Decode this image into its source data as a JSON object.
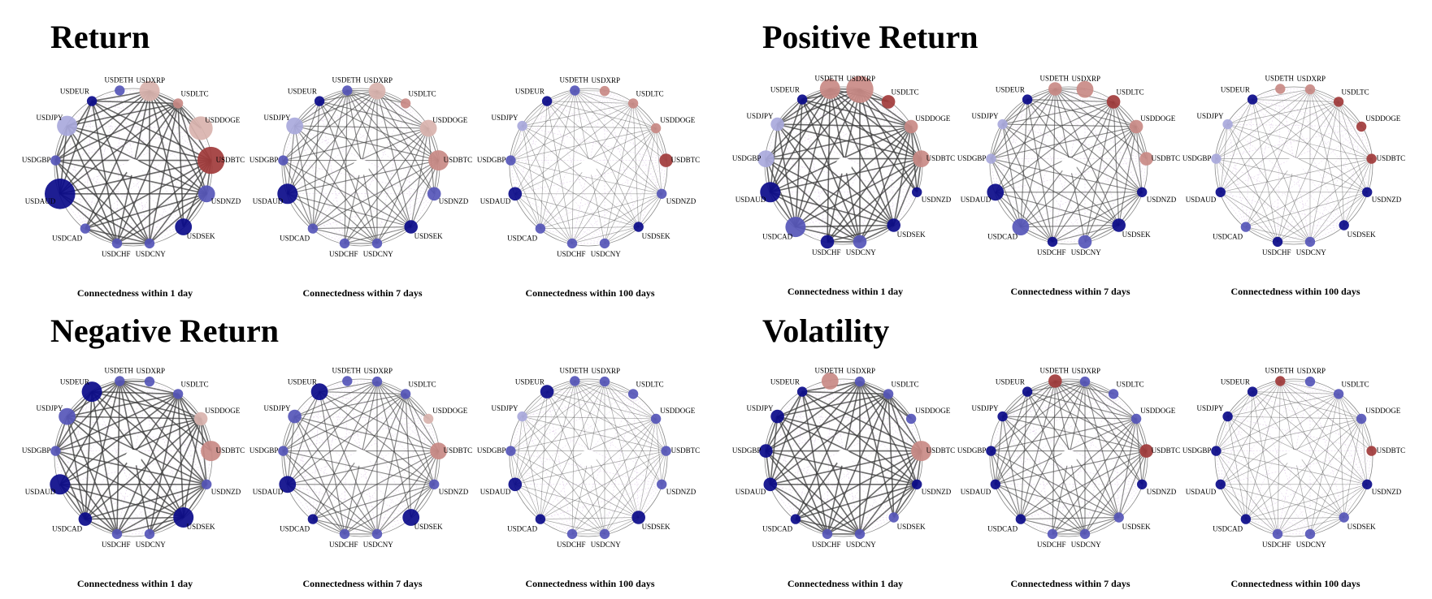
{
  "nodes": [
    "USDETH",
    "USDXRP",
    "USDLTC",
    "USDDOGE",
    "USDBTC",
    "USDNZD",
    "USDSEK",
    "USDCNY",
    "USDCHF",
    "USDCAD",
    "USDAUD",
    "USDGBP",
    "USDJPY",
    "USDEUR"
  ],
  "colors": {
    "crypto_strong": "#a13b3b",
    "crypto_mid": "#c98a86",
    "crypto_light": "#d9b3ae",
    "fx_strong": "#0b0b8a",
    "fx_mid": "#5656b8",
    "fx_light": "#a9a9dc",
    "edge_dark": "#3a3a3a",
    "edge_light": "#c9a7d8"
  },
  "sections": [
    {
      "title": "Return",
      "panels": [
        {
          "caption": "Connectedness within 1 day",
          "sizes": [
            2,
            5,
            2,
            6,
            7,
            4,
            4,
            2,
            2,
            2,
            8,
            2,
            5,
            2
          ],
          "tones": [
            "fx_mid",
            "crypto_light",
            "crypto_mid",
            "crypto_light",
            "crypto_strong",
            "fx_mid",
            "fx_strong",
            "fx_mid",
            "fx_mid",
            "fx_mid",
            "fx_strong",
            "fx_mid",
            "fx_light",
            "fx_strong"
          ]
        },
        {
          "caption": "Connectedness within 7 days",
          "sizes": [
            2,
            4,
            2,
            4,
            5,
            3,
            3,
            2,
            2,
            2,
            5,
            2,
            4,
            2
          ],
          "tones": [
            "fx_mid",
            "crypto_light",
            "crypto_mid",
            "crypto_light",
            "crypto_mid",
            "fx_mid",
            "fx_strong",
            "fx_mid",
            "fx_mid",
            "fx_mid",
            "fx_strong",
            "fx_mid",
            "fx_light",
            "fx_strong"
          ]
        },
        {
          "caption": "Connectedness within 100 days",
          "sizes": [
            2,
            2,
            2,
            2,
            3,
            2,
            2,
            2,
            2,
            2,
            3,
            2,
            2,
            2
          ],
          "tones": [
            "fx_mid",
            "crypto_mid",
            "crypto_mid",
            "crypto_mid",
            "crypto_strong",
            "fx_mid",
            "fx_strong",
            "fx_mid",
            "fx_mid",
            "fx_mid",
            "fx_strong",
            "fx_mid",
            "fx_light",
            "fx_strong"
          ]
        }
      ]
    },
    {
      "title": "Positive Return",
      "panels": [
        {
          "caption": "Connectedness within 1 day",
          "sizes": [
            5,
            7,
            3,
            3,
            4,
            2,
            3,
            3,
            3,
            5,
            5,
            4,
            3,
            2
          ],
          "tones": [
            "crypto_mid",
            "crypto_mid",
            "crypto_strong",
            "crypto_mid",
            "crypto_mid",
            "fx_strong",
            "fx_strong",
            "fx_mid",
            "fx_strong",
            "fx_mid",
            "fx_strong",
            "fx_light",
            "fx_light",
            "fx_strong"
          ]
        },
        {
          "caption": "Connectedness within 7 days",
          "sizes": [
            3,
            4,
            3,
            3,
            3,
            2,
            3,
            3,
            2,
            4,
            4,
            2,
            2,
            2
          ],
          "tones": [
            "crypto_mid",
            "crypto_mid",
            "crypto_strong",
            "crypto_mid",
            "crypto_mid",
            "fx_strong",
            "fx_strong",
            "fx_mid",
            "fx_strong",
            "fx_mid",
            "fx_strong",
            "fx_light",
            "fx_light",
            "fx_strong"
          ]
        },
        {
          "caption": "Connectedness within 100 days",
          "sizes": [
            2,
            2,
            2,
            2,
            2,
            2,
            2,
            2,
            2,
            2,
            2,
            2,
            2,
            2
          ],
          "tones": [
            "crypto_mid",
            "crypto_mid",
            "crypto_strong",
            "crypto_strong",
            "crypto_strong",
            "fx_strong",
            "fx_strong",
            "fx_mid",
            "fx_strong",
            "fx_mid",
            "fx_strong",
            "fx_light",
            "fx_light",
            "fx_strong"
          ]
        }
      ]
    },
    {
      "title": "Negative Return",
      "panels": [
        {
          "caption": "Connectedness within 1 day",
          "sizes": [
            2,
            2,
            2,
            3,
            5,
            2,
            5,
            2,
            2,
            3,
            5,
            2,
            4,
            5
          ],
          "tones": [
            "fx_mid",
            "fx_mid",
            "fx_mid",
            "crypto_light",
            "crypto_mid",
            "fx_mid",
            "fx_strong",
            "fx_mid",
            "fx_mid",
            "fx_strong",
            "fx_strong",
            "fx_mid",
            "fx_mid",
            "fx_strong"
          ]
        },
        {
          "caption": "Connectedness within 7 days",
          "sizes": [
            2,
            2,
            2,
            2,
            4,
            2,
            4,
            2,
            2,
            2,
            4,
            2,
            3,
            4
          ],
          "tones": [
            "fx_mid",
            "fx_mid",
            "fx_mid",
            "crypto_light",
            "crypto_mid",
            "fx_mid",
            "fx_strong",
            "fx_mid",
            "fx_mid",
            "fx_strong",
            "fx_strong",
            "fx_mid",
            "fx_mid",
            "fx_strong"
          ]
        },
        {
          "caption": "Connectedness within 100 days",
          "sizes": [
            2,
            2,
            2,
            2,
            2,
            2,
            3,
            2,
            2,
            2,
            3,
            2,
            2,
            3
          ],
          "tones": [
            "fx_mid",
            "fx_mid",
            "fx_mid",
            "fx_mid",
            "fx_mid",
            "fx_mid",
            "fx_strong",
            "fx_mid",
            "fx_mid",
            "fx_strong",
            "fx_strong",
            "fx_mid",
            "fx_light",
            "fx_strong"
          ]
        }
      ]
    },
    {
      "title": "Volatility",
      "panels": [
        {
          "caption": "Connectedness within 1 day",
          "sizes": [
            4,
            2,
            2,
            2,
            5,
            2,
            2,
            2,
            2,
            2,
            3,
            3,
            3,
            2
          ],
          "tones": [
            "crypto_mid",
            "fx_mid",
            "fx_mid",
            "fx_mid",
            "crypto_mid",
            "fx_strong",
            "fx_mid",
            "fx_mid",
            "fx_mid",
            "fx_strong",
            "fx_strong",
            "fx_strong",
            "fx_strong",
            "fx_strong"
          ]
        },
        {
          "caption": "Connectedness within 7 days",
          "sizes": [
            3,
            2,
            2,
            2,
            3,
            2,
            2,
            2,
            2,
            2,
            2,
            2,
            2,
            2
          ],
          "tones": [
            "crypto_strong",
            "fx_mid",
            "fx_mid",
            "fx_mid",
            "crypto_strong",
            "fx_strong",
            "fx_mid",
            "fx_mid",
            "fx_mid",
            "fx_strong",
            "fx_strong",
            "fx_strong",
            "fx_strong",
            "fx_strong"
          ]
        },
        {
          "caption": "Connectedness within 100 days",
          "sizes": [
            2,
            2,
            2,
            2,
            2,
            2,
            2,
            2,
            2,
            2,
            2,
            2,
            2,
            2
          ],
          "tones": [
            "crypto_strong",
            "fx_mid",
            "fx_mid",
            "fx_mid",
            "crypto_strong",
            "fx_strong",
            "fx_mid",
            "fx_mid",
            "fx_mid",
            "fx_strong",
            "fx_strong",
            "fx_strong",
            "fx_strong",
            "fx_strong"
          ]
        }
      ]
    }
  ]
}
